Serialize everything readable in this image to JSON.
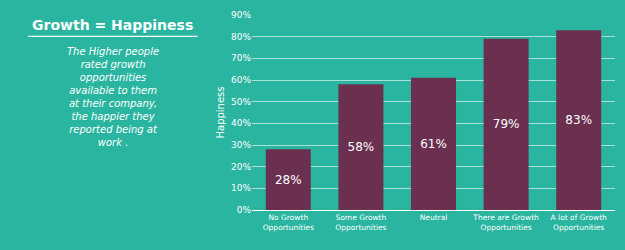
{
  "chart_data": {
    "type": "bar",
    "title": "Growth = Happiness",
    "subtitle": "The Higher people\nrated growth\nopportunities\navailable to them\nat their company,\nthe happier they\nreported being at\nwork .",
    "categories": [
      "No Growth\nOpportunities",
      "Some Growth\nOpportunities",
      "Neutral",
      "There are Growth\nOpportunities",
      "A lot of Growth\nOpportunities"
    ],
    "values": [
      28,
      58,
      61,
      79,
      83
    ],
    "value_labels": [
      "28%",
      "58%",
      "61%",
      "79%",
      "83%"
    ],
    "data_labels": true,
    "color": "#6b3050",
    "ylabel": "Happiness",
    "ylim": [
      0,
      90
    ],
    "yticks": [
      {
        "value": 0,
        "label": "0%"
      },
      {
        "value": 10,
        "label": "10%"
      },
      {
        "value": 20,
        "label": "20%"
      },
      {
        "value": 30,
        "label": "30%"
      },
      {
        "value": 40,
        "label": "40%"
      },
      {
        "value": 50,
        "label": "50%"
      },
      {
        "value": 60,
        "label": "60%"
      },
      {
        "value": 70,
        "label": "70%"
      },
      {
        "value": 80,
        "label": "80%"
      },
      {
        "value": 90,
        "label": "90%"
      }
    ],
    "grid": true
  }
}
